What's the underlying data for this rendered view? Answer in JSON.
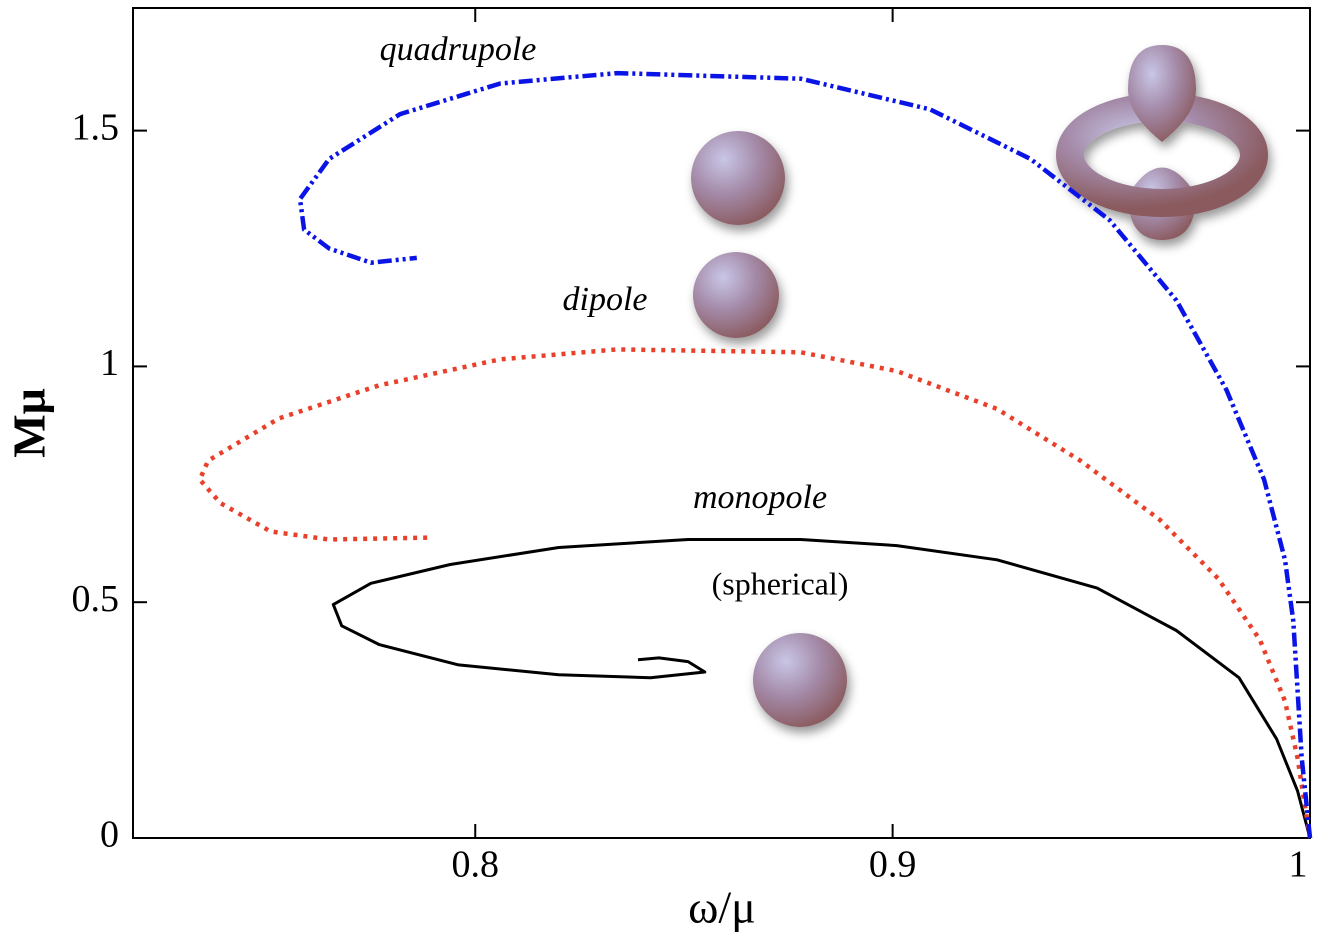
{
  "chart_data": {
    "type": "line",
    "xlabel": "ω/μ",
    "ylabel": "Mμ",
    "xlim": [
      0.718,
      1.0
    ],
    "ylim": [
      0,
      1.76
    ],
    "xticks": [
      0.8,
      0.9,
      1
    ],
    "yticks": [
      0,
      0.5,
      1,
      1.5
    ],
    "annotation": "(spherical)",
    "series": [
      {
        "name": "monopole",
        "color": "#000000",
        "style": "solid",
        "x": [
          1.0,
          0.997,
          0.992,
          0.983,
          0.968,
          0.949,
          0.925,
          0.901,
          0.878,
          0.851,
          0.82,
          0.794,
          0.775,
          0.766,
          0.768,
          0.777,
          0.796,
          0.82,
          0.842,
          0.855,
          0.851,
          0.844,
          0.839
        ],
        "values": [
          0,
          0.1,
          0.21,
          0.34,
          0.44,
          0.53,
          0.59,
          0.62,
          0.633,
          0.633,
          0.616,
          0.58,
          0.54,
          0.495,
          0.45,
          0.41,
          0.367,
          0.346,
          0.34,
          0.352,
          0.374,
          0.382,
          0.378
        ]
      },
      {
        "name": "dipole",
        "color": "#e8402a",
        "style": "dotted",
        "x": [
          1.0,
          0.997,
          0.994,
          0.988,
          0.978,
          0.964,
          0.945,
          0.925,
          0.901,
          0.878,
          0.834,
          0.806,
          0.777,
          0.753,
          0.736,
          0.734,
          0.739,
          0.751,
          0.765,
          0.789
        ],
        "values": [
          0,
          0.17,
          0.29,
          0.42,
          0.55,
          0.675,
          0.8,
          0.91,
          0.99,
          1.03,
          1.036,
          1.015,
          0.96,
          0.89,
          0.8,
          0.76,
          0.71,
          0.65,
          0.633,
          0.637
        ]
      },
      {
        "name": "quadrupole",
        "color": "#0a14e6",
        "style": "dashdotdot",
        "x": [
          1.0,
          0.998,
          0.996,
          0.994,
          0.989,
          0.98,
          0.968,
          0.952,
          0.933,
          0.909,
          0.878,
          0.834,
          0.806,
          0.782,
          0.765,
          0.758,
          0.759,
          0.765,
          0.775,
          0.786
        ],
        "values": [
          0,
          0.17,
          0.46,
          0.59,
          0.76,
          0.95,
          1.14,
          1.31,
          1.44,
          1.545,
          1.61,
          1.622,
          1.6,
          1.535,
          1.44,
          1.355,
          1.29,
          1.25,
          1.22,
          1.23
        ]
      }
    ]
  }
}
